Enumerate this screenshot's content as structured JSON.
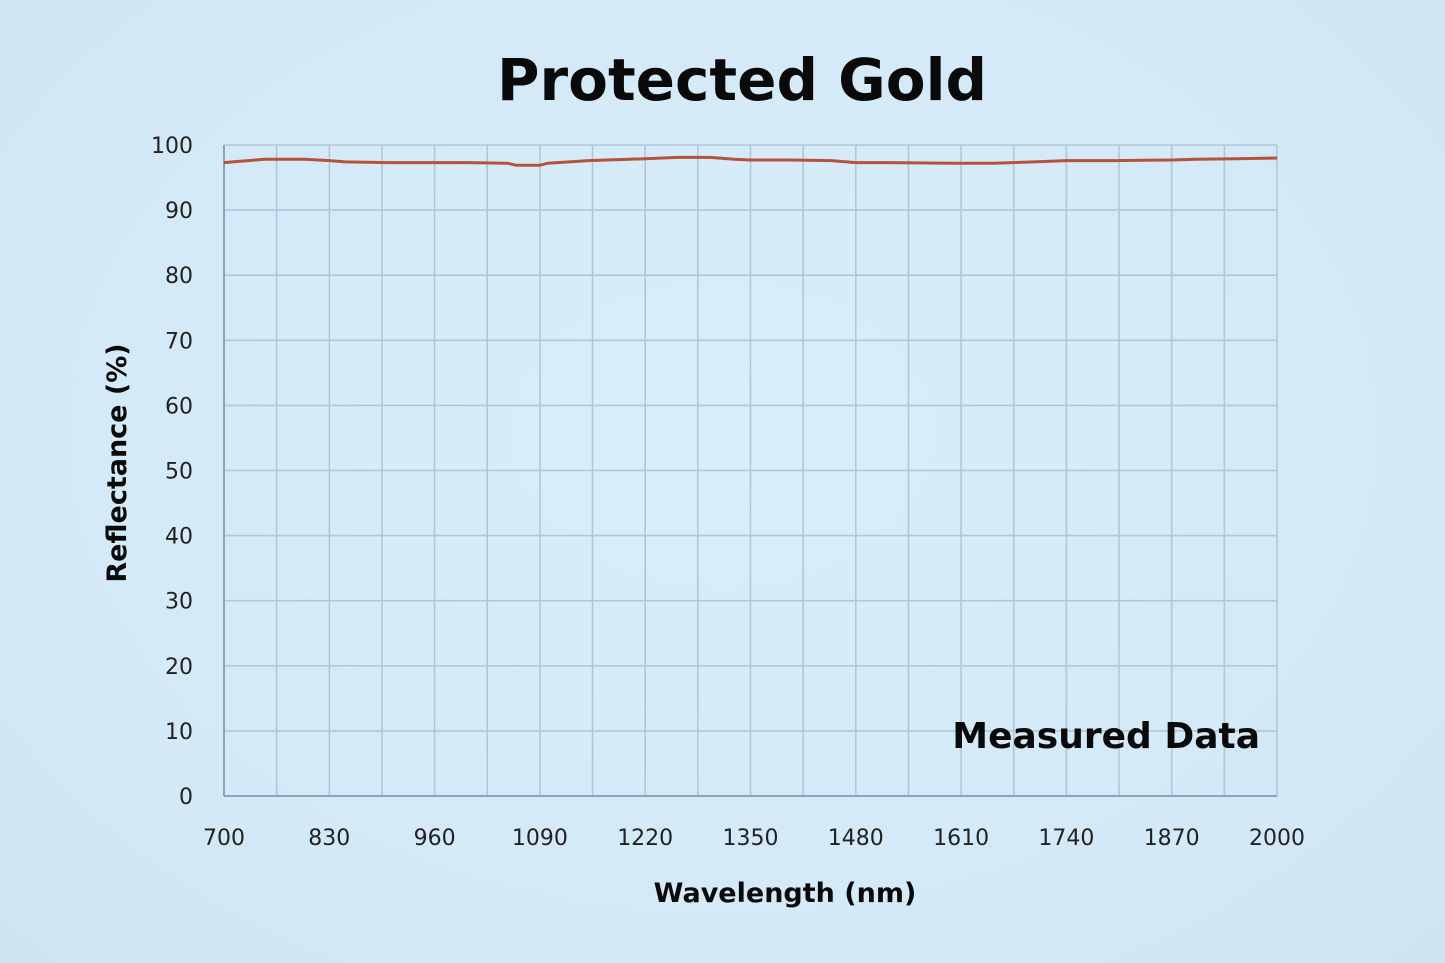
{
  "chart_data": {
    "type": "line",
    "title": "Protected Gold",
    "xlabel": "Wavelength (nm)",
    "ylabel": "Reflectance (%)",
    "annotation": "Measured Data",
    "xlim": [
      700,
      2000
    ],
    "ylim": [
      0,
      100
    ],
    "x_ticks": [
      700,
      830,
      960,
      1090,
      1220,
      1350,
      1480,
      1610,
      1740,
      1870,
      2000
    ],
    "y_ticks": [
      0,
      10,
      20,
      30,
      40,
      50,
      60,
      70,
      80,
      90,
      100
    ],
    "grid": true,
    "series": [
      {
        "color": "#b5523b",
        "x": [
          700,
          720,
          750,
          800,
          830,
          850,
          900,
          960,
          1000,
          1050,
          1060,
          1090,
          1100,
          1150,
          1200,
          1220,
          1260,
          1300,
          1330,
          1350,
          1400,
          1450,
          1480,
          1520,
          1600,
          1650,
          1700,
          1740,
          1800,
          1870,
          1900,
          1950,
          2000
        ],
        "y": [
          97.3,
          97.5,
          97.8,
          97.8,
          97.6,
          97.4,
          97.3,
          97.3,
          97.3,
          97.2,
          96.9,
          96.9,
          97.2,
          97.6,
          97.8,
          97.9,
          98.1,
          98.1,
          97.8,
          97.7,
          97.7,
          97.6,
          97.3,
          97.3,
          97.2,
          97.2,
          97.4,
          97.6,
          97.6,
          97.7,
          97.8,
          97.9,
          98.0
        ]
      }
    ]
  }
}
